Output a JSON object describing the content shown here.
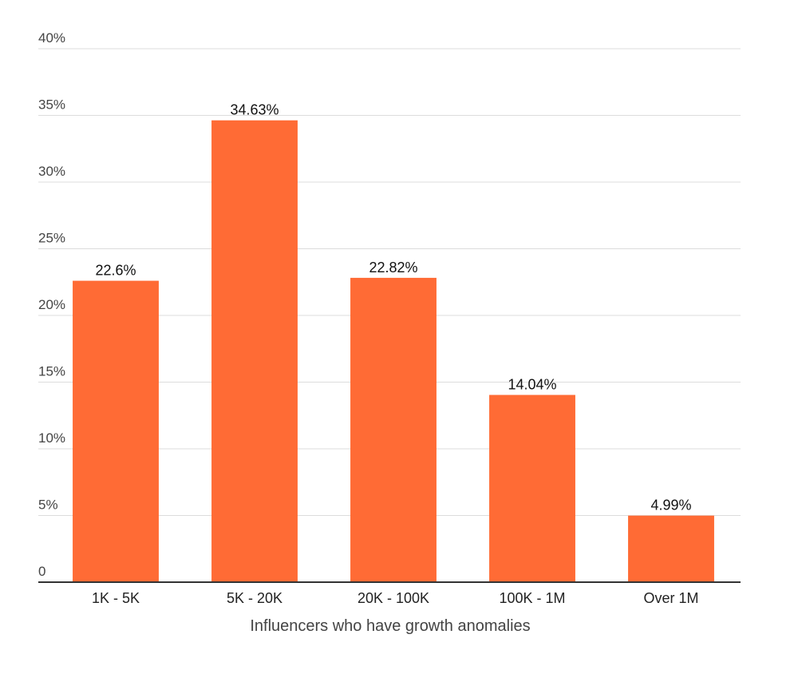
{
  "chart_data": {
    "type": "bar",
    "title": "",
    "xlabel": "Influencers who have growth anomalies",
    "ylabel": "",
    "ylim": [
      0,
      40
    ],
    "yticks": [
      {
        "value": 0,
        "label": "0"
      },
      {
        "value": 5,
        "label": "5%"
      },
      {
        "value": 10,
        "label": "10%"
      },
      {
        "value": 15,
        "label": "15%"
      },
      {
        "value": 20,
        "label": "20%"
      },
      {
        "value": 25,
        "label": "25%"
      },
      {
        "value": 30,
        "label": "30%"
      },
      {
        "value": 35,
        "label": "35%"
      },
      {
        "value": 40,
        "label": "40%"
      }
    ],
    "grid": true,
    "legend": "none",
    "categories": [
      "1K - 5K",
      "5K - 20K",
      "20K - 100K",
      "100K - 1M",
      "Over 1M"
    ],
    "values": [
      22.6,
      34.63,
      22.82,
      14.04,
      4.99
    ],
    "data_labels": [
      "22.6%",
      "34.63%",
      "22.82%",
      "14.04%",
      "4.99%"
    ],
    "bar_color": "#ff6b35",
    "grid_color": "#dcdcdc",
    "baseline_color": "#333333"
  }
}
